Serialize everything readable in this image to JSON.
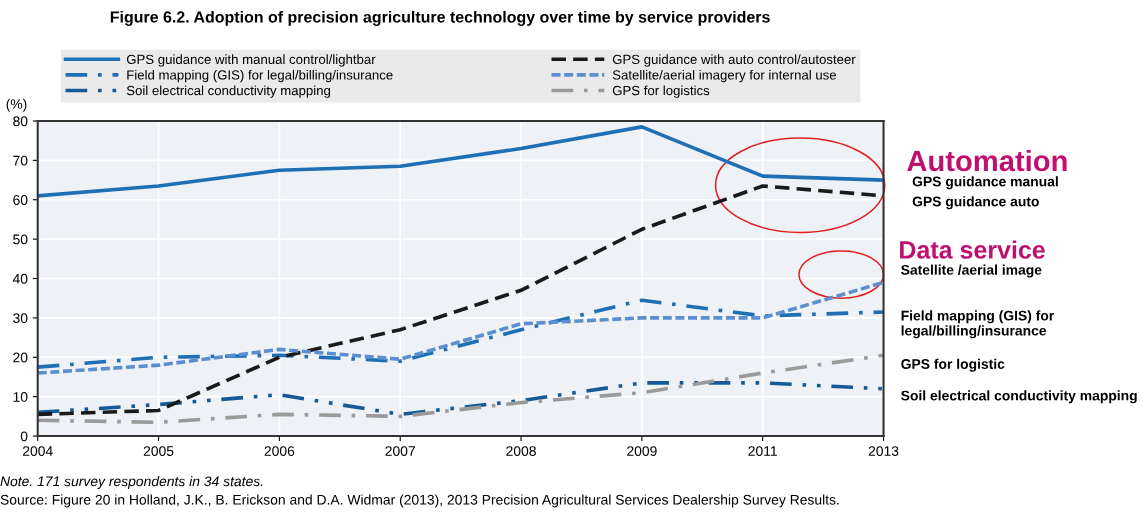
{
  "chart_data": {
    "type": "line",
    "title": "Figure 6.2. Adoption of precision agriculture technology over time by service providers",
    "ylabel": "(%)",
    "categories": [
      "2004",
      "2005",
      "2006",
      "2007",
      "2008",
      "2009",
      "2011",
      "2013"
    ],
    "series": [
      {
        "name": "GPS guidance with manual control/lightbar",
        "color": "#1f6fb5",
        "line_style": "solid",
        "values": [
          61,
          63.5,
          67.5,
          68.5,
          73,
          78.5,
          66,
          65
        ]
      },
      {
        "name": "Field mapping (GIS) for legal/billing/insurance",
        "color": "#1f6fb5",
        "line_style": "dashdot",
        "values": [
          17.5,
          20,
          20.5,
          19,
          27,
          34.5,
          30.5,
          31.5
        ]
      },
      {
        "name": "Soil electrical conductivity mapping",
        "color": "#155a96",
        "line_style": "dashdotdot",
        "values": [
          6,
          8,
          10.5,
          5.5,
          9,
          13.5,
          13.5,
          12
        ]
      },
      {
        "name": "GPS guidance with auto control/autosteer",
        "color": "#1a1a1a",
        "line_style": "dashed",
        "values": [
          5.5,
          6.5,
          20,
          27,
          37,
          52.5,
          63.5,
          61
        ]
      },
      {
        "name": "Satellite/aerial imagery for internal use",
        "color": "#5b8fd0",
        "line_style": "dotted",
        "values": [
          16,
          18,
          22,
          19.5,
          28.5,
          30,
          30,
          39
        ]
      },
      {
        "name": "GPS for logistics",
        "color": "#9a9a9a",
        "line_style": "dashdot",
        "values": [
          4,
          3.5,
          5.5,
          5,
          8.5,
          11,
          16,
          20.5
        ]
      }
    ],
    "ylim": [
      0,
      80
    ],
    "yticks": [
      0,
      10,
      20,
      30,
      40,
      50,
      60,
      70,
      80
    ],
    "grid": true,
    "legend": "top",
    "annotations": [
      "Note. 171 survey respondents in 34 states.",
      "Source: Figure 20 in Holland, J.K., B. Erickson and D.A. Widmar (2013), 2013 Precision Agricultural Services Dealership Survey Results.",
      "Automation",
      "GPS guidance manual",
      "GPS guidance auto",
      "Data service",
      "Satellite /aerial image",
      "Field mapping (GIS) for legal/billing/insurance",
      "GPS for logistic",
      "Soil electrical conductivity mapping"
    ]
  }
}
